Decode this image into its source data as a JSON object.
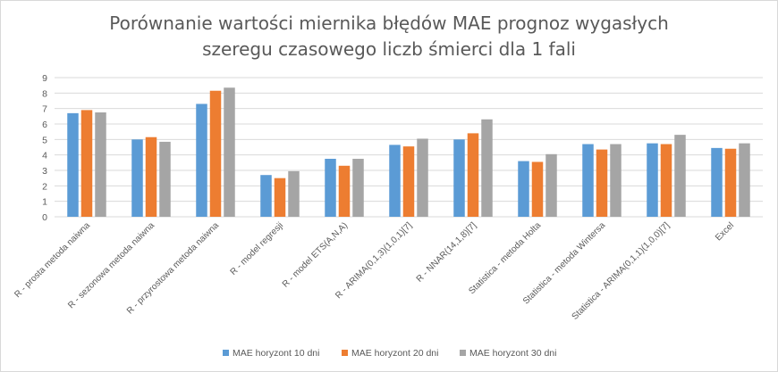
{
  "chart_data": {
    "type": "bar",
    "title_lines": [
      "Porównanie wartości miernika błędów MAE prognoz wygasłych",
      "szeregu czasowego liczb śmierci dla 1 fali"
    ],
    "categories": [
      "R - prosta metoda naiwna",
      "R - sezonowa metoda naiwna",
      "R - przyrostowa metoda naiwna",
      "R - model regresji",
      "R - model ETS(A,N,A)",
      "R - ARIMA(0,1,3)(1,0,1)[7]",
      "R - NNAR(14,1,8)[7]",
      "Statistica - metoda Holta",
      "Statistica - metoda Wintersa",
      "Statistica - ARIMA(0,1,1)(1,0,0)[7]",
      "Excel"
    ],
    "series": [
      {
        "name": "MAE horyzont 10 dni",
        "color": "#5b9bd5",
        "values": [
          6.7,
          5.0,
          7.3,
          2.7,
          3.75,
          4.65,
          5.0,
          3.6,
          4.7,
          4.75,
          4.45
        ]
      },
      {
        "name": "MAE horyzont 20 dni",
        "color": "#ed7d31",
        "values": [
          6.9,
          5.15,
          8.15,
          2.5,
          3.3,
          4.55,
          5.4,
          3.55,
          4.35,
          4.7,
          4.4
        ]
      },
      {
        "name": "MAE horyzont 30 dni",
        "color": "#a5a5a5",
        "values": [
          6.75,
          4.85,
          8.35,
          2.95,
          3.75,
          5.05,
          6.3,
          4.05,
          4.7,
          5.3,
          4.75
        ]
      }
    ],
    "ylim": [
      0,
      9
    ],
    "yticks": [
      0,
      1,
      2,
      3,
      4,
      5,
      6,
      7,
      8,
      9
    ],
    "grid": true,
    "legend_position": "bottom"
  }
}
